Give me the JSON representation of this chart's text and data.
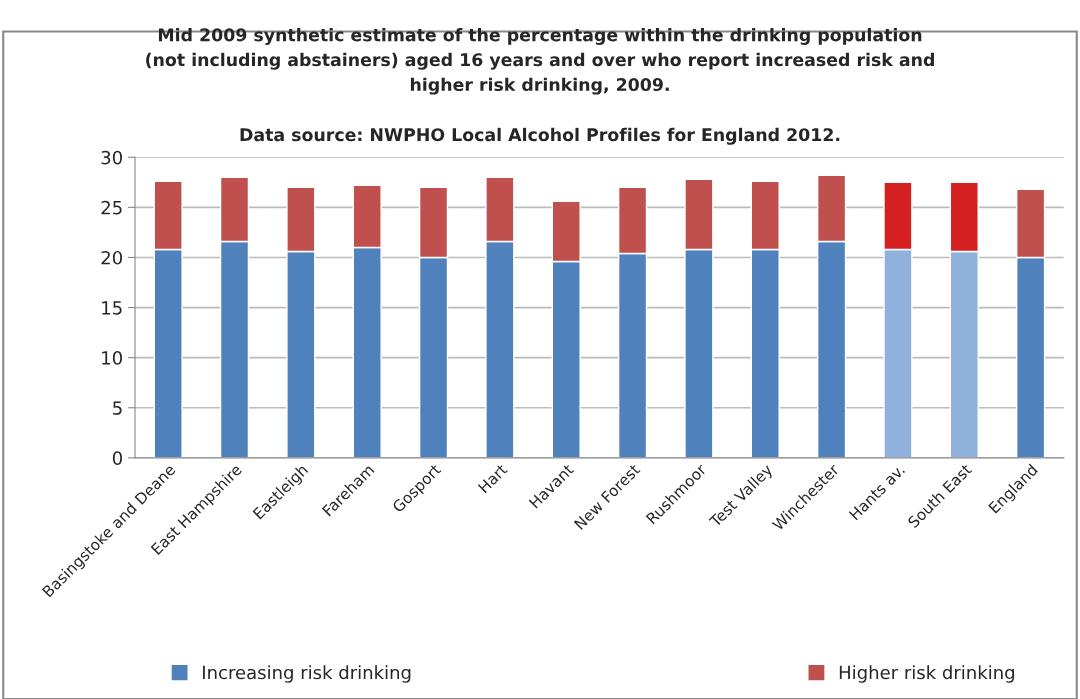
{
  "chart_data": {
    "type": "bar",
    "title": "Mid 2009 synthetic estimate of the percentage within the drinking population\n(not including abstainers) aged 16 years and over who report increased risk and\nhigher risk drinking, 2009.",
    "subtitle": "Data source: NWPHO Local Alcohol Profiles for England 2012.",
    "categories": [
      "Basingstoke and Deane",
      "East Hampshire",
      "Eastleigh",
      "Fareham",
      "Gosport",
      "Hart",
      "Havant",
      "New Forest",
      "Rushmoor",
      "Test Valley",
      "Winchester",
      "Hants av.",
      "South East",
      "England"
    ],
    "stacked": true,
    "series": [
      {
        "name": "Increasing risk drinking",
        "color": "#4f81bd",
        "colors": [
          "#4f81bd",
          "#4f81bd",
          "#4f81bd",
          "#4f81bd",
          "#4f81bd",
          "#4f81bd",
          "#4f81bd",
          "#4f81bd",
          "#4f81bd",
          "#4f81bd",
          "#4f81bd",
          "#8fb1dc",
          "#8fb1dc",
          "#4f81bd"
        ],
        "values": [
          20.8,
          21.6,
          20.6,
          21.0,
          20.0,
          21.6,
          19.6,
          20.4,
          20.8,
          20.8,
          21.6,
          20.8,
          20.6,
          20.0
        ]
      },
      {
        "name": "Higher risk drinking",
        "color": "#c0504d",
        "colors": [
          "#c0504d",
          "#c0504d",
          "#c0504d",
          "#c0504d",
          "#c0504d",
          "#c0504d",
          "#c0504d",
          "#c0504d",
          "#c0504d",
          "#c0504d",
          "#c0504d",
          "#d42020",
          "#d42020",
          "#c0504d"
        ],
        "values": [
          6.8,
          6.4,
          6.4,
          6.2,
          7.0,
          6.4,
          6.0,
          6.6,
          7.0,
          6.8,
          6.6,
          6.7,
          6.9,
          6.8
        ]
      }
    ],
    "ylim": [
      0,
      30
    ],
    "yticks": [
      0,
      5,
      10,
      15,
      20,
      25,
      30
    ],
    "grid": "y",
    "legend": "bottom"
  }
}
